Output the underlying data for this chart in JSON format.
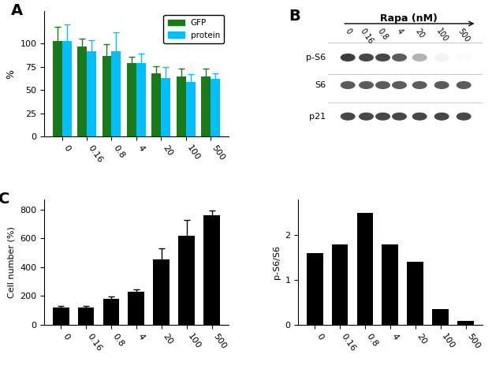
{
  "categories": [
    "0",
    "0.16",
    "0.8",
    "4",
    "20",
    "100",
    "500"
  ],
  "panel_A": {
    "gfp_values": [
      103,
      97,
      87,
      79,
      68,
      65,
      65
    ],
    "gfp_errors": [
      15,
      8,
      12,
      7,
      8,
      8,
      8
    ],
    "protein_values": [
      103,
      92,
      92,
      79,
      63,
      59,
      62
    ],
    "protein_errors": [
      18,
      12,
      20,
      10,
      12,
      8,
      6
    ],
    "ylabel": "%",
    "yticks": [
      0,
      25,
      50,
      75,
      100
    ],
    "ylim": [
      0,
      135
    ],
    "gfp_color": "#1a7a1a",
    "protein_color": "#00bfff"
  },
  "panel_C": {
    "values": [
      120,
      120,
      178,
      230,
      455,
      615,
      760
    ],
    "errors": [
      10,
      12,
      18,
      15,
      75,
      110,
      30
    ],
    "ylabel": "Cell number (%)",
    "yticks": [
      0,
      200,
      400,
      600,
      800
    ],
    "ylim": [
      0,
      870
    ],
    "bar_color": "#000000"
  },
  "panel_D": {
    "values": [
      1.6,
      1.8,
      2.5,
      1.8,
      1.4,
      0.35,
      0.08
    ],
    "ylabel": "p-S6/S6",
    "yticks": [
      0,
      1,
      2
    ],
    "ylim": [
      0,
      2.8
    ],
    "bar_color": "#000000"
  },
  "panel_B_labels": [
    "p-S6",
    "S6",
    "p21"
  ],
  "panel_B_title": "Rapa (nM)",
  "pS6_intensities": [
    0.9,
    0.85,
    0.85,
    0.75,
    0.35,
    0.05,
    0.02
  ],
  "S6_intensities": [
    0.75,
    0.75,
    0.75,
    0.75,
    0.75,
    0.75,
    0.75
  ],
  "p21_intensities": [
    0.85,
    0.85,
    0.85,
    0.85,
    0.85,
    0.85,
    0.85
  ],
  "x_label_rotation": -55,
  "background_color": "#ffffff"
}
